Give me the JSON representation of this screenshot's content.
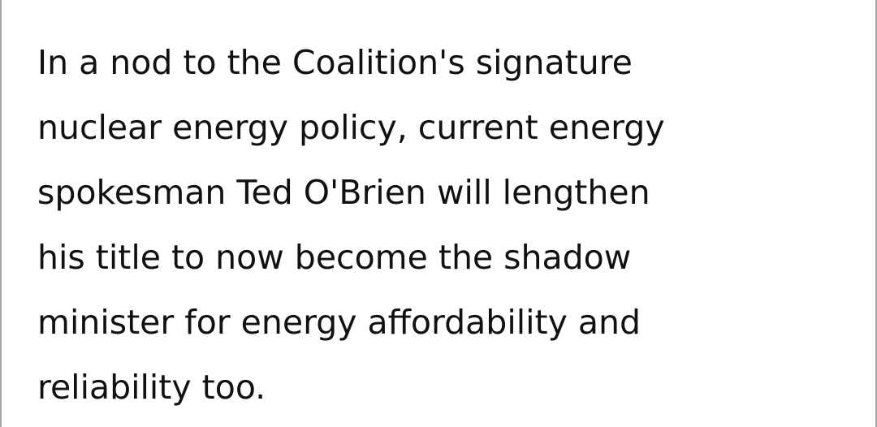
{
  "article": {
    "lines": [
      "In a nod to the Coalition's signature",
      "nuclear energy policy, current energy",
      "spokesman Ted O'Brien will lengthen",
      "his title to now become the shadow",
      "minister for energy affordability and",
      "reliability too."
    ]
  }
}
